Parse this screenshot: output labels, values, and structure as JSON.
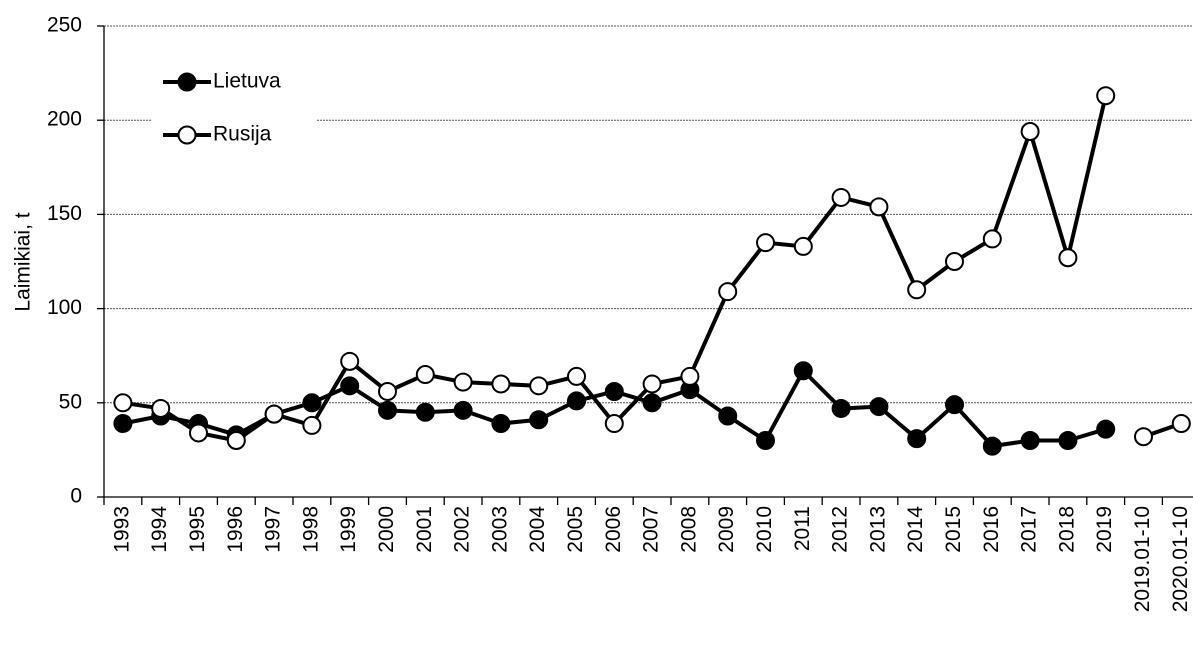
{
  "chart_data": {
    "type": "line",
    "y_label": "Laimikiai, t",
    "categories": [
      "1993",
      "1994",
      "1995",
      "1996",
      "1997",
      "1998",
      "1999",
      "2000",
      "2001",
      "2002",
      "2003",
      "2004",
      "2005",
      "2006",
      "2007",
      "2008",
      "2009",
      "2010",
      "2011",
      "2012",
      "2013",
      "2014",
      "2015",
      "2016",
      "2017",
      "2018",
      "2019",
      "2019.01-10",
      "2020.01-10"
    ],
    "series": [
      {
        "name": "Lietuva",
        "color": "#000000",
        "marker_fill": "#000000",
        "values": [
          39,
          43,
          39,
          33,
          44,
          50,
          59,
          46,
          45,
          46,
          39,
          41,
          51,
          56,
          50,
          57,
          43,
          30,
          67,
          47,
          48,
          31,
          49,
          27,
          30,
          30,
          36,
          null,
          null
        ]
      },
      {
        "name": "Rusija",
        "color": "#000000",
        "marker_fill": "#ffffff",
        "values": [
          50,
          47,
          34,
          30,
          44,
          38,
          72,
          56,
          65,
          61,
          60,
          59,
          64,
          39,
          60,
          64,
          109,
          135,
          133,
          159,
          154,
          110,
          125,
          137,
          194,
          127,
          213,
          32,
          39
        ]
      }
    ],
    "breaks_after": [
      26
    ],
    "ylim": [
      0,
      250
    ],
    "yticks": [
      0,
      50,
      100,
      150,
      200,
      250
    ],
    "grid": true,
    "legend": "upper left"
  }
}
